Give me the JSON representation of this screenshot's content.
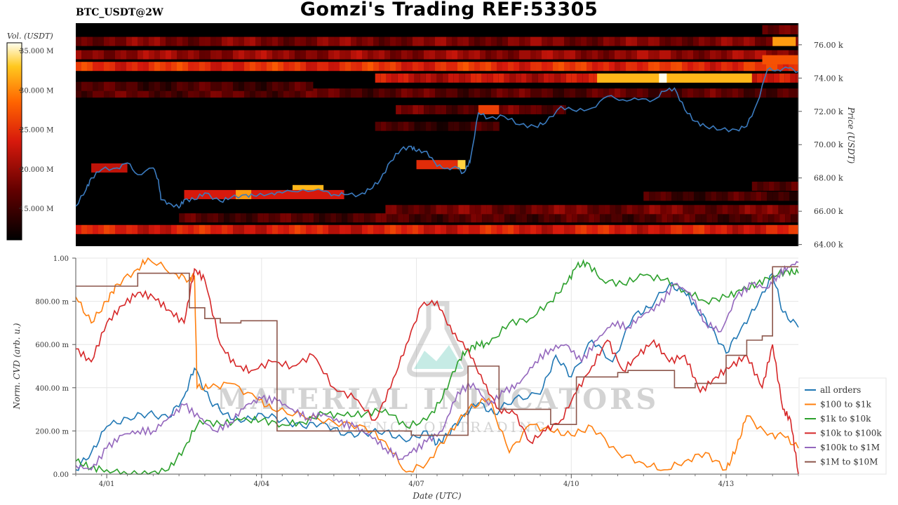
{
  "header": {
    "title": "Gomzi's Trading REF:53305",
    "symbol": "BTC_USDT@2W"
  },
  "watermark": {
    "line1": "MATERIAL INDICATORS",
    "line2": "SCIENCE OF TRADING"
  },
  "colors": {
    "heatmap_bg": "#000000",
    "price_line": "#3b7bbf",
    "all_orders": "#1f77b4",
    "usd100_1k": "#ff7f0e",
    "usd1k_10k": "#2ca02c",
    "usd10k_100k": "#d62728",
    "usd100k_1m": "#9467bd",
    "usd1m_10m": "#8c564b"
  },
  "chart_data": [
    {
      "type": "heatmap",
      "colorbar": {
        "label": "Vol. (USDT)",
        "ticks": [
          "15.000 M",
          "20.000 M",
          "25.000 M",
          "30.000 M",
          "35.000 M"
        ],
        "tick_values": [
          15,
          20,
          25,
          30,
          35
        ],
        "range": [
          11,
          36
        ]
      },
      "y_axis": {
        "label": "Price (USDT)",
        "ticks": [
          "64.00 k",
          "66.00 k",
          "68.00 k",
          "70.00 k",
          "72.00 k",
          "74.00 k",
          "76.00 k"
        ],
        "tick_values": [
          64,
          66,
          68,
          70,
          72,
          74,
          76
        ],
        "range": [
          63.9,
          77.3
        ]
      },
      "x_range_days": [
        0,
        14
      ],
      "bands": [
        {
          "price": 64.9,
          "from": 0,
          "to": 14,
          "level": 0.5
        },
        {
          "price": 65.6,
          "from": 2,
          "to": 14,
          "level": 0.2
        },
        {
          "price": 66.1,
          "from": 6,
          "to": 14,
          "level": 0.28
        },
        {
          "price": 66.9,
          "from": 11,
          "to": 14,
          "level": 0.18
        },
        {
          "price": 67.5,
          "from": 13.1,
          "to": 14,
          "level": 0.26
        },
        {
          "price": 73.1,
          "from": 0,
          "to": 14,
          "level": 0.22
        },
        {
          "price": 73.5,
          "from": 0,
          "to": 4.6,
          "level": 0.18
        },
        {
          "price": 74.0,
          "from": 5.8,
          "to": 14,
          "level": 0.45
        },
        {
          "price": 74.7,
          "from": 0,
          "to": 14,
          "level": 0.55
        },
        {
          "price": 75.4,
          "from": 0,
          "to": 14,
          "level": 0.35
        },
        {
          "price": 76.2,
          "from": 0,
          "to": 14,
          "level": 0.3
        },
        {
          "price": 76.9,
          "from": 13.3,
          "to": 14,
          "level": 0.3
        },
        {
          "price": 72.1,
          "from": 6.2,
          "to": 9.5,
          "level": 0.25
        },
        {
          "price": 71.1,
          "from": 5.8,
          "to": 8.2,
          "level": 0.15
        }
      ],
      "hot_spots": [
        {
          "price": 74.0,
          "from": 10.1,
          "to": 13.1,
          "level": 0.85
        },
        {
          "price": 74.0,
          "from": 11.3,
          "to": 11.45,
          "level": 1.0
        },
        {
          "price": 67.3,
          "from": 4.2,
          "to": 4.8,
          "level": 0.85
        },
        {
          "price": 67.0,
          "from": 2.1,
          "to": 5.2,
          "level": 0.5
        },
        {
          "price": 67.0,
          "from": 3.1,
          "to": 3.4,
          "level": 0.8
        },
        {
          "price": 76.2,
          "from": 13.5,
          "to": 13.95,
          "level": 0.8
        },
        {
          "price": 75.1,
          "from": 13.3,
          "to": 14,
          "level": 0.65
        },
        {
          "price": 68.8,
          "from": 6.6,
          "to": 7.4,
          "level": 0.55
        },
        {
          "price": 68.8,
          "from": 7.4,
          "to": 7.55,
          "level": 0.9
        },
        {
          "price": 72.1,
          "from": 7.8,
          "to": 8.2,
          "level": 0.6
        },
        {
          "price": 68.6,
          "from": 0.3,
          "to": 1.0,
          "level": 0.45
        }
      ],
      "price_series": {
        "name": "BTC_USDT",
        "x_days": [
          0,
          0.2,
          0.3,
          0.5,
          0.8,
          1.0,
          1.2,
          1.5,
          1.6,
          1.65,
          1.8,
          2.0,
          2.1,
          2.3,
          2.5,
          2.8,
          3.0,
          3.3,
          3.5,
          3.8,
          4.0,
          4.4,
          4.8,
          5.0,
          5.2,
          5.5,
          5.7,
          5.9,
          6.1,
          6.3,
          6.5,
          6.6,
          6.8,
          7.0,
          7.2,
          7.4,
          7.5,
          7.6,
          7.65,
          7.8,
          8.0,
          8.3,
          8.6,
          8.9,
          9.1,
          9.4,
          9.7,
          10.0,
          10.3,
          10.6,
          10.9,
          11.2,
          11.4,
          11.6,
          11.8,
          12.0,
          12.2,
          12.5,
          12.8,
          13.0,
          13.2,
          13.4,
          13.6,
          13.8,
          14.0
        ],
        "y_k": [
          66.3,
          67.3,
          68.0,
          68.5,
          68.6,
          68.9,
          68.2,
          68.6,
          67.9,
          66.7,
          66.5,
          66.2,
          66.7,
          66.7,
          67.1,
          66.6,
          66.8,
          67.0,
          66.9,
          67.1,
          67.1,
          67.3,
          67.2,
          67.0,
          67.0,
          67.0,
          67.3,
          67.9,
          69.0,
          69.7,
          69.9,
          69.6,
          69.6,
          68.7,
          68.6,
          68.6,
          68.3,
          68.7,
          69.2,
          71.9,
          71.6,
          71.7,
          71.2,
          71.1,
          71.3,
          72.3,
          72.0,
          72.2,
          72.9,
          72.7,
          72.7,
          72.7,
          73.2,
          73.4,
          72.1,
          71.4,
          71.1,
          70.9,
          70.9,
          71.1,
          72.5,
          74.5,
          74.5,
          74.6,
          74.4
        ]
      }
    },
    {
      "type": "line",
      "xlabel": "Date (UTC)",
      "ylabel": "Norm. CVD (arb. u.)",
      "ylim": [
        0,
        1
      ],
      "y_ticks": [
        "0.00",
        "200.00 m",
        "400.00 m",
        "600.00 m",
        "800.00 m",
        "1.00"
      ],
      "y_tick_values": [
        0,
        0.2,
        0.4,
        0.6,
        0.8,
        1.0
      ],
      "x_ticks": [
        "4/01",
        "4/04",
        "4/07",
        "4/10",
        "4/13"
      ],
      "x_tick_days": [
        0.6,
        3.6,
        6.6,
        9.6,
        12.6
      ],
      "x_range_days": [
        0,
        14
      ],
      "legend_position": "bottom-right",
      "series": [
        {
          "name": "all orders",
          "x": [
            0,
            0.3,
            0.6,
            1.0,
            1.4,
            1.8,
            2.1,
            2.3,
            2.6,
            2.9,
            3.2,
            3.6,
            4.0,
            4.4,
            4.8,
            5.2,
            5.6,
            6.0,
            6.4,
            6.8,
            7.0,
            7.2,
            7.5,
            7.8,
            8.1,
            8.5,
            9.0,
            9.3,
            9.6,
            10.0,
            10.4,
            10.8,
            11.1,
            11.5,
            11.8,
            12.0,
            12.3,
            12.6,
            12.9,
            13.2,
            13.5,
            13.7,
            14.0
          ],
          "y": [
            0.02,
            0.1,
            0.22,
            0.26,
            0.28,
            0.26,
            0.36,
            0.49,
            0.34,
            0.28,
            0.24,
            0.28,
            0.25,
            0.22,
            0.24,
            0.18,
            0.19,
            0.2,
            0.15,
            0.2,
            0.14,
            0.18,
            0.27,
            0.33,
            0.28,
            0.35,
            0.37,
            0.55,
            0.45,
            0.62,
            0.52,
            0.73,
            0.77,
            0.88,
            0.84,
            0.78,
            0.68,
            0.56,
            0.68,
            0.78,
            0.93,
            0.75,
            0.68
          ]
        },
        {
          "name": "$100 to $1k",
          "x": [
            0,
            0.3,
            0.6,
            0.8,
            1.2,
            1.4,
            1.9,
            2.2,
            2.3,
            2.35,
            2.6,
            3.0,
            3.5,
            3.8,
            4.4,
            5.0,
            5.6,
            6.0,
            6.4,
            6.8,
            7.2,
            7.6,
            8.0,
            8.4,
            8.8,
            9.2,
            9.6,
            10.0,
            10.5,
            11.0,
            11.4,
            11.8,
            12.2,
            12.6,
            12.8,
            13.0,
            13.4,
            13.7,
            14.0
          ],
          "y": [
            0.82,
            0.7,
            0.8,
            0.88,
            0.95,
            1.0,
            0.93,
            0.9,
            0.92,
            0.4,
            0.4,
            0.42,
            0.35,
            0.3,
            0.27,
            0.24,
            0.22,
            0.15,
            0.01,
            0.05,
            0.18,
            0.3,
            0.35,
            0.1,
            0.23,
            0.2,
            0.18,
            0.22,
            0.1,
            0.05,
            0.02,
            0.06,
            0.1,
            0.02,
            0.12,
            0.27,
            0.18,
            0.18,
            0.12
          ]
        },
        {
          "name": "$1k to $10k",
          "x": [
            0,
            0.3,
            0.6,
            1.0,
            1.4,
            1.8,
            2.1,
            2.4,
            2.8,
            3.2,
            3.6,
            4.0,
            4.4,
            4.8,
            5.2,
            5.6,
            6.0,
            6.4,
            6.8,
            7.1,
            7.4,
            7.6,
            7.8,
            8.0,
            8.4,
            8.8,
            9.2,
            9.5,
            9.7,
            9.9,
            10.2,
            10.6,
            11.0,
            11.4,
            11.8,
            12.2,
            12.6,
            12.9,
            13.2,
            13.5,
            13.8,
            14.0
          ],
          "y": [
            0.06,
            0.03,
            0.02,
            0.0,
            0.0,
            0.02,
            0.12,
            0.25,
            0.23,
            0.25,
            0.25,
            0.23,
            0.24,
            0.28,
            0.27,
            0.28,
            0.3,
            0.22,
            0.25,
            0.35,
            0.52,
            0.58,
            0.6,
            0.6,
            0.7,
            0.72,
            0.8,
            0.88,
            0.96,
            0.98,
            0.9,
            0.88,
            0.92,
            0.9,
            0.85,
            0.8,
            0.82,
            0.85,
            0.88,
            0.92,
            0.94,
            0.93
          ]
        },
        {
          "name": "$10k to $100k",
          "x": [
            0,
            0.3,
            0.6,
            0.9,
            1.2,
            1.5,
            1.8,
            2.1,
            2.3,
            2.5,
            2.8,
            3.1,
            3.4,
            3.8,
            4.2,
            4.6,
            5.0,
            5.4,
            5.8,
            6.1,
            6.4,
            6.7,
            7.0,
            7.3,
            7.6,
            7.9,
            8.2,
            8.5,
            8.8,
            9.1,
            9.4,
            9.7,
            10.0,
            10.3,
            10.6,
            10.9,
            11.2,
            11.5,
            11.8,
            12.1,
            12.4,
            12.7,
            13.0,
            13.3,
            13.5,
            13.7,
            13.85,
            14.0
          ],
          "y": [
            0.58,
            0.52,
            0.7,
            0.78,
            0.84,
            0.82,
            0.76,
            0.7,
            0.95,
            0.9,
            0.6,
            0.5,
            0.48,
            0.52,
            0.5,
            0.55,
            0.4,
            0.35,
            0.25,
            0.4,
            0.6,
            0.78,
            0.8,
            0.65,
            0.58,
            0.42,
            0.3,
            0.28,
            0.15,
            0.2,
            0.25,
            0.38,
            0.5,
            0.62,
            0.48,
            0.55,
            0.62,
            0.52,
            0.55,
            0.38,
            0.45,
            0.5,
            0.55,
            0.4,
            0.6,
            0.3,
            0.25,
            0.0
          ]
        },
        {
          "name": "$100k to $1M",
          "x": [
            0,
            0.3,
            0.6,
            0.9,
            1.2,
            1.5,
            1.8,
            2.1,
            2.4,
            2.7,
            3.0,
            3.3,
            3.6,
            3.9,
            4.2,
            4.5,
            4.8,
            5.1,
            5.4,
            5.7,
            6.0,
            6.3,
            6.5,
            6.8,
            7.1,
            7.4,
            7.7,
            8.0,
            8.3,
            8.6,
            8.9,
            9.2,
            9.5,
            9.8,
            10.1,
            10.4,
            10.7,
            11.0,
            11.3,
            11.6,
            11.9,
            12.2,
            12.5,
            12.8,
            13.1,
            13.4,
            13.6,
            13.8,
            14.0
          ],
          "y": [
            0.04,
            0.02,
            0.12,
            0.18,
            0.2,
            0.2,
            0.26,
            0.32,
            0.26,
            0.2,
            0.24,
            0.32,
            0.35,
            0.34,
            0.3,
            0.26,
            0.28,
            0.24,
            0.22,
            0.18,
            0.12,
            0.07,
            0.1,
            0.15,
            0.2,
            0.38,
            0.42,
            0.32,
            0.38,
            0.42,
            0.52,
            0.58,
            0.6,
            0.52,
            0.62,
            0.7,
            0.68,
            0.74,
            0.78,
            0.88,
            0.84,
            0.7,
            0.66,
            0.82,
            0.88,
            0.86,
            0.92,
            0.96,
            0.98
          ]
        },
        {
          "name": "$1M to $10M",
          "x": [
            0,
            0.5,
            0.5,
            1.2,
            1.2,
            2.2,
            2.2,
            2.5,
            2.5,
            2.8,
            2.8,
            3.2,
            3.2,
            3.9,
            3.9,
            5.5,
            5.5,
            6.5,
            6.5,
            7.6,
            7.6,
            8.2,
            8.2,
            9.2,
            9.2,
            9.7,
            9.7,
            10.5,
            10.5,
            10.7,
            10.7,
            11.6,
            11.6,
            12.0,
            12.0,
            12.6,
            12.6,
            13.0,
            13.0,
            13.3,
            13.3,
            13.5,
            13.5,
            14.0
          ],
          "y": [
            0.87,
            0.87,
            0.87,
            0.87,
            0.93,
            0.93,
            0.77,
            0.77,
            0.72,
            0.72,
            0.7,
            0.7,
            0.71,
            0.71,
            0.2,
            0.2,
            0.2,
            0.2,
            0.18,
            0.18,
            0.5,
            0.5,
            0.3,
            0.3,
            0.23,
            0.23,
            0.45,
            0.45,
            0.47,
            0.47,
            0.48,
            0.48,
            0.4,
            0.4,
            0.42,
            0.42,
            0.55,
            0.55,
            0.62,
            0.62,
            0.64,
            0.64,
            0.96,
            0.96
          ]
        }
      ]
    }
  ]
}
